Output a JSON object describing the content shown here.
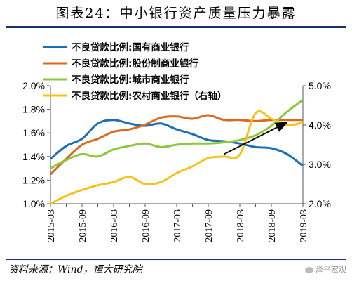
{
  "header": {
    "title": "图表24：中小银行资产质量压力暴露"
  },
  "footer": {
    "source": "资料来源：Wind，恒大研究院",
    "watermark": "泽平宏观"
  },
  "chart_data": {
    "type": "line",
    "title": "图表24：中小银行资产质量压力暴露",
    "x": [
      "2015-03",
      "2015-06",
      "2015-09",
      "2015-12",
      "2016-03",
      "2016-06",
      "2016-09",
      "2016-12",
      "2017-03",
      "2017-06",
      "2017-09",
      "2017-12",
      "2018-03",
      "2018-06",
      "2018-09",
      "2018-12",
      "2019-03"
    ],
    "x_tick_labels": [
      "2015-03",
      "2015-09",
      "2016-03",
      "2016-09",
      "2017-03",
      "2017-09",
      "2018-03",
      "2018-09",
      "2019-03"
    ],
    "ylim": [
      0.01,
      0.02
    ],
    "y_ticks": [
      "1.0%",
      "1.2%",
      "1.4%",
      "1.6%",
      "1.8%",
      "2.0%"
    ],
    "y2lim": [
      0.02,
      0.05
    ],
    "y2_ticks": [
      "2.0%",
      "3.0%",
      "4.0%",
      "5.0%"
    ],
    "grid": false,
    "legend_position": "top-left",
    "series": [
      {
        "name": "不良贷款比例:国有商业银行",
        "color": "#1b6fb3",
        "axis": "left",
        "values": [
          0.0138,
          0.0149,
          0.0155,
          0.0168,
          0.0171,
          0.0168,
          0.0166,
          0.0168,
          0.0163,
          0.0159,
          0.0154,
          0.0153,
          0.0151,
          0.0148,
          0.0147,
          0.0142,
          0.0132
        ]
      },
      {
        "name": "不良贷款比例:股份制商业银行",
        "color": "#d96a1e",
        "axis": "left",
        "values": [
          0.0125,
          0.0138,
          0.015,
          0.0155,
          0.0161,
          0.0163,
          0.0167,
          0.0173,
          0.0174,
          0.0172,
          0.0175,
          0.0171,
          0.0171,
          0.017,
          0.0171,
          0.0171,
          0.0171
        ]
      },
      {
        "name": "不良贷款比例:城市商业银行",
        "color": "#8dc63f",
        "axis": "left",
        "values": [
          0.013,
          0.0137,
          0.0142,
          0.014,
          0.0146,
          0.0149,
          0.0151,
          0.0148,
          0.015,
          0.0151,
          0.0151,
          0.0152,
          0.0154,
          0.0158,
          0.0166,
          0.0178,
          0.0188
        ]
      },
      {
        "name": "不良贷款比例:农村商业银行（右轴）",
        "color": "#f5c21b",
        "axis": "right",
        "values": [
          0.02,
          0.022,
          0.0235,
          0.0247,
          0.0255,
          0.0268,
          0.025,
          0.0255,
          0.0278,
          0.0295,
          0.0316,
          0.032,
          0.0325,
          0.043,
          0.0416,
          0.04,
          0.0406
        ]
      }
    ],
    "annotations": [
      {
        "type": "arrow",
        "from": [
          "2017-12",
          0.0142
        ],
        "to": [
          "2018-12",
          0.0169
        ]
      }
    ]
  }
}
